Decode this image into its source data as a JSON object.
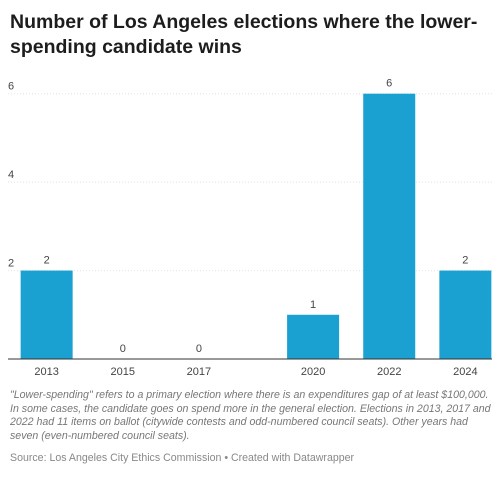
{
  "title": "Number of Los Angeles elections where the lower-spending candidate wins",
  "note": "\"Lower-spending\" refers to a primary election where there is an expenditures gap of at least $100,000. In some cases, the candidate goes on spend more in the general election. Elections in 2013, 2017 and 2022 had 11 items on ballot (citywide contests and odd-numbered council seats). Other years had seven (even-numbered council seats).",
  "source": "Source: Los Angeles City Ethics Commission • Created with Datawrapper",
  "colors": {
    "bar": "#1aa1d1",
    "grid": "#e2e2e2",
    "axis": "#333333"
  },
  "chart_data": {
    "type": "bar",
    "title": "Number of Los Angeles elections where the lower-spending candidate wins",
    "xlabel": "",
    "ylabel": "",
    "x_is_time": true,
    "xlim": [
      2012.3,
      2024.7
    ],
    "ylim": [
      0,
      6.4
    ],
    "yticks": [
      2,
      4,
      6
    ],
    "grid": true,
    "categories": [
      "2013",
      "2015",
      "2017",
      "2020",
      "2022",
      "2024"
    ],
    "values": [
      2,
      0,
      0,
      1,
      6,
      2
    ],
    "data_labels": [
      "2",
      "0",
      "0",
      "1",
      "6",
      "2"
    ]
  }
}
